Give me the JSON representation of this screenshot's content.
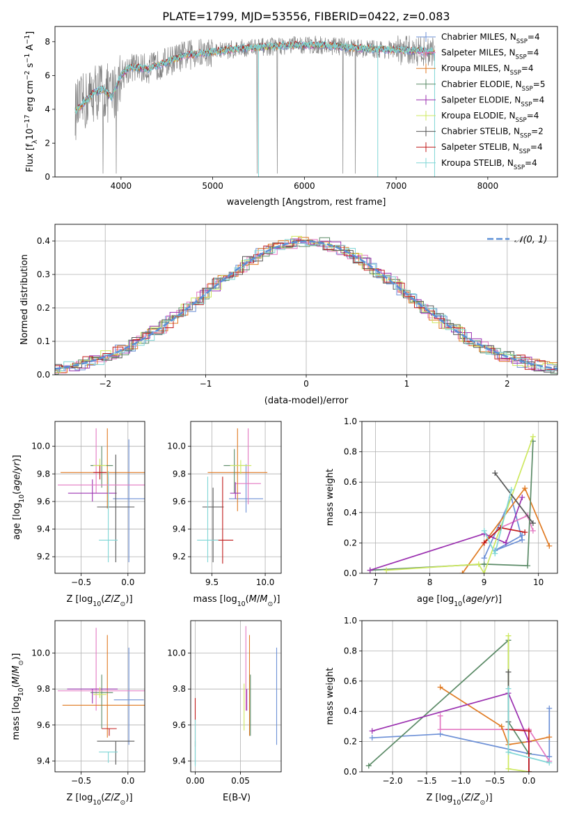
{
  "figure": {
    "title": "PLATE=1799, MJD=53556, FIBERID=0422, z=0.083"
  },
  "colors": {
    "Chabrier MILES": "#6b8fd6",
    "Salpeter MILES": "#e377c2",
    "Kroupa MILES": "#e07a22",
    "Chabrier ELODIE": "#5a8a66",
    "Salpeter ELODIE": "#9b30b0",
    "Kroupa ELODIE": "#cde85e",
    "Chabrier STELIB": "#555555",
    "Salpeter STELIB": "#c01818",
    "Kroupa STELIB": "#7fd6d6",
    "data": "#808080",
    "gauss": "#5b8fd6"
  },
  "chart_data": [
    {
      "id": "spectrum",
      "type": "line",
      "title": "PLATE=1799, MJD=53556, FIBERID=0422, z=0.083",
      "xlabel": "wavelength [Angstrom, rest frame]",
      "ylabel_parts": [
        "Flux [f",
        "λ",
        "10",
        "−17",
        " erg cm",
        "−2",
        " s",
        "−1",
        " A",
        "−1",
        "]"
      ],
      "xlim": [
        3280,
        8760
      ],
      "ylim": [
        0,
        8.9
      ],
      "xticks": [
        4000,
        5000,
        6000,
        7000,
        8000
      ],
      "yticks": [
        0,
        2,
        4,
        6,
        8
      ],
      "continuum": {
        "x": [
          3500,
          3600,
          3700,
          3800,
          3900,
          4000,
          4100,
          4300,
          4500,
          4700,
          5000,
          5300,
          5600,
          5900,
          6200,
          6500,
          6800,
          7100,
          7400
        ],
        "y": [
          3.9,
          4.4,
          5.0,
          5.2,
          4.7,
          6.0,
          6.5,
          6.4,
          6.8,
          7.2,
          7.4,
          7.6,
          7.7,
          7.8,
          7.8,
          7.65,
          7.55,
          7.5,
          7.4
        ]
      },
      "legend": [
        {
          "name": "Chabrier MILES",
          "nssp": "4"
        },
        {
          "name": "Salpeter MILES",
          "nssp": "4"
        },
        {
          "name": "Kroupa MILES",
          "nssp": "4"
        },
        {
          "name": "Chabrier ELODIE",
          "nssp": "5"
        },
        {
          "name": "Salpeter ELODIE",
          "nssp": "4"
        },
        {
          "name": "Kroupa ELODIE",
          "nssp": "4"
        },
        {
          "name": "Chabrier STELIB",
          "nssp": "2"
        },
        {
          "name": "Salpeter STELIB",
          "nssp": "4"
        },
        {
          "name": "Kroupa STELIB",
          "nssp": "4"
        }
      ],
      "legend_sub": "SSP",
      "legend_placement": "right"
    },
    {
      "id": "residuals",
      "type": "histogram",
      "xlabel": "(data-model)/error",
      "ylabel": "Normed distribution",
      "xlim": [
        -2.5,
        2.5
      ],
      "ylim": [
        0,
        0.45
      ],
      "xticks": [
        -2,
        -1,
        0,
        1,
        2
      ],
      "yticks": [
        0,
        0.1,
        0.2,
        0.3,
        0.4
      ],
      "legend": "𝒩(0, 1)",
      "legend_placement": "top-right",
      "grid": true
    },
    {
      "id": "age-vs-Z",
      "type": "errorbar",
      "xlabel": "Z [log10(Z/Z⊙)]",
      "ylabel": "age  [log10(age/yr)]",
      "xlim": [
        -0.78,
        0.18
      ],
      "ylim": [
        9.08,
        10.18
      ],
      "xticks": [
        -0.5,
        0.0
      ],
      "yticks": [
        9.2,
        9.4,
        9.6,
        9.8,
        10.0
      ],
      "points": [
        {
          "model": "Chabrier MILES",
          "x": 0.01,
          "xerr": 0.17,
          "y": 9.62,
          "yerr": [
            0.46,
            0.43
          ]
        },
        {
          "model": "Salpeter MILES",
          "x": -0.34,
          "xerr": 0.06,
          "y": 9.86,
          "yerr": [
            0.2,
            0.27
          ]
        },
        {
          "model": "Kroupa MILES",
          "x": -0.22,
          "xerr": 0.5,
          "y": 9.81,
          "yerr": [
            0.26,
            0.32
          ]
        },
        {
          "model": "Chabrier ELODIE",
          "x": -0.28,
          "xerr": 0.12,
          "y": 9.86,
          "yerr": [
            0.16,
            0.14
          ]
        },
        {
          "model": "Salpeter ELODIE",
          "x": -0.38,
          "xerr": 0.26,
          "y": 9.66,
          "yerr": [
            0.06,
            0.1
          ]
        },
        {
          "model": "Kroupa ELODIE",
          "x": -0.3,
          "xerr": 0.07,
          "y": 9.86,
          "yerr": [
            0.05,
            0.05
          ]
        },
        {
          "model": "Chabrier STELIB",
          "x": -0.13,
          "xerr": 0.2,
          "y": 9.56,
          "yerr": [
            0.4,
            0.38
          ]
        },
        {
          "model": "Salpeter STELIB",
          "x": -0.3,
          "xerr": 0.07,
          "y": 9.81,
          "yerr": [
            0.05,
            0.05
          ]
        },
        {
          "model": "Salpeter MILES",
          "x": -0.21,
          "xerr": 0.54,
          "y": 9.72,
          "yerr": [
            0.06,
            0.06
          ]
        },
        {
          "model": "Kroupa STELIB",
          "x": -0.21,
          "xerr": 0.1,
          "y": 9.32,
          "yerr": [
            0.16,
            0.5
          ]
        }
      ]
    },
    {
      "id": "age-vs-mass",
      "type": "errorbar",
      "xlabel": "mass [log10(M/M⊙)]",
      "ylabel": "",
      "xlim": [
        9.3,
        10.15
      ],
      "ylim": [
        9.08,
        10.18
      ],
      "xticks": [
        9.5,
        10.0
      ],
      "yticks": [
        9.2,
        9.4,
        9.6,
        9.8,
        10.0
      ],
      "points": [
        {
          "model": "Chabrier MILES",
          "x": 9.82,
          "xerr": 0.16,
          "y": 9.62,
          "yerr": [
            0.1,
            0.25
          ]
        },
        {
          "model": "Salpeter MILES",
          "x": 9.84,
          "xerr": 0.12,
          "y": 9.73,
          "yerr": [
            0.15,
            0.4
          ]
        },
        {
          "model": "Kroupa MILES",
          "x": 9.74,
          "xerr": 0.28,
          "y": 9.81,
          "yerr": [
            0.28,
            0.32
          ]
        },
        {
          "model": "Chabrier ELODIE",
          "x": 9.71,
          "xerr": 0.1,
          "y": 9.86,
          "yerr": [
            0.2,
            0.12
          ]
        },
        {
          "model": "Salpeter ELODIE",
          "x": 9.72,
          "xerr": 0.05,
          "y": 9.66,
          "yerr": [
            0.04,
            0.08
          ]
        },
        {
          "model": "Kroupa ELODIE",
          "x": 9.77,
          "xerr": 0.1,
          "y": 9.86,
          "yerr": [
            0.06,
            0.04
          ]
        },
        {
          "model": "Chabrier STELIB",
          "x": 9.51,
          "xerr": 0.1,
          "y": 9.56,
          "yerr": [
            0.4,
            0.14
          ]
        },
        {
          "model": "Salpeter STELIB",
          "x": 9.6,
          "xerr": 0.1,
          "y": 9.32,
          "yerr": [
            0.17,
            0.46
          ]
        },
        {
          "model": "Kroupa STELIB",
          "x": 9.46,
          "xerr": 0.1,
          "y": 9.32,
          "yerr": [
            0.16,
            0.46
          ]
        }
      ]
    },
    {
      "id": "weight-vs-age",
      "type": "line",
      "xlabel": "age  [log10(age/yr)]",
      "ylabel": "mass weight",
      "xlim": [
        6.75,
        10.35
      ],
      "ylim": [
        0,
        1
      ],
      "xticks": [
        7,
        8,
        9,
        10
      ],
      "yticks": [
        0,
        0.2,
        0.4,
        0.6,
        0.8,
        1.0
      ],
      "grid": true,
      "series": [
        {
          "model": "Chabrier MILES",
          "x": [
            9.0,
            9.5,
            9.7,
            9.2,
            9.7
          ],
          "y": [
            0.1,
            0.5,
            0.22,
            0.15,
            0.25
          ]
        },
        {
          "model": "Salpeter MILES",
          "x": [
            9.0,
            9.3,
            9.8,
            9.9
          ],
          "y": [
            0.2,
            0.3,
            0.38,
            0.28
          ]
        },
        {
          "model": "Kroupa MILES",
          "x": [
            8.6,
            9.0,
            9.75,
            10.2
          ],
          "y": [
            0.0,
            0.2,
            0.56,
            0.18
          ]
        },
        {
          "model": "Chabrier ELODIE",
          "x": [
            6.9,
            9.0,
            9.8,
            9.9
          ],
          "y": [
            0.02,
            0.06,
            0.05,
            0.87
          ]
        },
        {
          "model": "Salpeter ELODIE",
          "x": [
            6.9,
            9.0,
            9.4,
            9.7
          ],
          "y": [
            0.02,
            0.26,
            0.2,
            0.5
          ]
        },
        {
          "model": "Kroupa ELODIE",
          "x": [
            7.2,
            8.9,
            9.0,
            9.9
          ],
          "y": [
            0.02,
            0.06,
            0.0,
            0.9
          ]
        },
        {
          "model": "Chabrier STELIB",
          "x": [
            9.2,
            9.9
          ],
          "y": [
            0.66,
            0.33
          ]
        },
        {
          "model": "Salpeter STELIB",
          "x": [
            9.0,
            9.3,
            9.75
          ],
          "y": [
            0.2,
            0.3,
            0.27
          ]
        },
        {
          "model": "Kroupa STELIB",
          "x": [
            9.0,
            9.2,
            9.5
          ],
          "y": [
            0.28,
            0.13,
            0.55
          ]
        }
      ]
    },
    {
      "id": "mass-vs-Z",
      "type": "errorbar",
      "xlabel": "Z [log10(Z/Z⊙)]",
      "ylabel": "mass [log10(M/M⊙)]",
      "xlim": [
        -0.78,
        0.18
      ],
      "ylim": [
        9.34,
        10.18
      ],
      "xticks": [
        -0.5,
        0.0
      ],
      "yticks": [
        9.4,
        9.6,
        9.8,
        10.0
      ],
      "points": [
        {
          "model": "Chabrier MILES",
          "x": 0.01,
          "xerr": 0.16,
          "y": 9.74,
          "yerr": [
            0.25,
            0.29
          ]
        },
        {
          "model": "Salpeter MILES",
          "x": -0.34,
          "xerr": 0.06,
          "y": 9.8,
          "yerr": [
            0.12,
            0.34
          ]
        },
        {
          "model": "Kroupa MILES",
          "x": -0.22,
          "xerr": 0.48,
          "y": 9.71,
          "yerr": [
            0.18,
            0.39
          ]
        },
        {
          "model": "Chabrier ELODIE",
          "x": -0.28,
          "xerr": 0.12,
          "y": 9.78,
          "yerr": [
            0.2,
            0.1
          ]
        },
        {
          "model": "Salpeter ELODIE",
          "x": -0.38,
          "xerr": 0.27,
          "y": 9.8,
          "yerr": [
            0.08,
            0.0
          ]
        },
        {
          "model": "Kroupa ELODIE",
          "x": -0.3,
          "xerr": 0.07,
          "y": 9.77,
          "yerr": [
            0.02,
            0.04
          ]
        },
        {
          "model": "Chabrier STELIB",
          "x": -0.13,
          "xerr": 0.2,
          "y": 9.51,
          "yerr": [
            0.13,
            0.0
          ]
        },
        {
          "model": "Salpeter STELIB",
          "x": -0.2,
          "xerr": 0.08,
          "y": 9.58,
          "yerr": [
            0.04,
            0.0
          ]
        },
        {
          "model": "Salpeter MILES",
          "x": -0.21,
          "xerr": 0.54,
          "y": 9.79,
          "yerr": [
            0.0,
            0.0
          ]
        },
        {
          "model": "Kroupa STELIB",
          "x": -0.21,
          "xerr": 0.1,
          "y": 9.45,
          "yerr": [
            0.06,
            0.0
          ]
        }
      ]
    },
    {
      "id": "mass-vs-EBV",
      "type": "errorbar",
      "xlabel": "E(B-V)",
      "ylabel": "",
      "xlim": [
        -0.005,
        0.095
      ],
      "ylim": [
        9.34,
        10.18
      ],
      "xticks": [
        0.0,
        0.05
      ],
      "yticks": [
        9.4,
        9.6,
        9.8,
        10.0
      ],
      "points": [
        {
          "model": "Chabrier MILES",
          "x": 0.09,
          "y": 9.76,
          "yerr": [
            0.27,
            0.27
          ]
        },
        {
          "model": "Salpeter MILES",
          "x": 0.056,
          "y": 9.8,
          "yerr": [
            0.12,
            0.35
          ]
        },
        {
          "model": "Kroupa MILES",
          "x": 0.06,
          "y": 9.72,
          "yerr": [
            0.18,
            0.38
          ]
        },
        {
          "model": "Chabrier ELODIE",
          "x": 0.061,
          "y": 9.78,
          "yerr": [
            0.24,
            0.1
          ]
        },
        {
          "model": "Salpeter ELODIE",
          "x": 0.057,
          "y": 9.8,
          "yerr": [
            0.12,
            0.0
          ]
        },
        {
          "model": "Kroupa ELODIE",
          "x": 0.054,
          "y": 9.71,
          "yerr": [
            0.14,
            0.12
          ]
        },
        {
          "model": "Salpeter STELIB",
          "x": 0.0,
          "y": 9.58,
          "yerr": [
            0.1,
            0.17
          ]
        },
        {
          "model": "Chabrier STELIB",
          "x": 0.0,
          "y": 9.51,
          "yerr": [
            0.13,
            0.0
          ]
        },
        {
          "model": "Kroupa STELIB",
          "x": 0.0,
          "y": 9.45,
          "yerr": [
            0.08,
            0.18
          ]
        }
      ]
    },
    {
      "id": "weight-vs-Z",
      "type": "line",
      "xlabel": "Z [log10(Z/Z⊙)]",
      "ylabel": "mass weight",
      "xlim": [
        -2.45,
        0.42
      ],
      "ylim": [
        0,
        1
      ],
      "xticks": [
        -2.0,
        -1.5,
        -1.0,
        -0.5,
        0.0
      ],
      "yticks": [
        0,
        0.2,
        0.4,
        0.6,
        0.8,
        1.0
      ],
      "grid": true,
      "series": [
        {
          "model": "Chabrier MILES",
          "x": [
            -2.3,
            -1.3,
            0.0,
            0.3,
            0.3
          ],
          "y": [
            0.225,
            0.25,
            0.12,
            0.1,
            0.42
          ]
        },
        {
          "model": "Salpeter MILES",
          "x": [
            -1.3,
            -1.3,
            0.0,
            0.3
          ],
          "y": [
            0.37,
            0.28,
            0.28,
            0.07
          ]
        },
        {
          "model": "Kroupa MILES",
          "x": [
            -1.3,
            -0.4,
            -0.3,
            0.0,
            0.3
          ],
          "y": [
            0.56,
            0.3,
            0.18,
            0.2,
            0.23
          ]
        },
        {
          "model": "Chabrier ELODIE",
          "x": [
            -2.35,
            -0.3,
            -0.3,
            0.0,
            0.0
          ],
          "y": [
            0.04,
            0.87,
            0.33,
            0.12,
            0.0
          ]
        },
        {
          "model": "Salpeter ELODIE",
          "x": [
            -2.3,
            -0.3,
            0.0,
            0.0
          ],
          "y": [
            0.27,
            0.52,
            0.2,
            0.0
          ]
        },
        {
          "model": "Kroupa ELODIE",
          "x": [
            -0.3,
            -0.3,
            0.0
          ],
          "y": [
            0.9,
            0.02,
            0.0
          ]
        },
        {
          "model": "Chabrier STELIB",
          "x": [
            -0.3,
            -0.3
          ],
          "y": [
            0.66,
            0.33
          ]
        },
        {
          "model": "Salpeter STELIB",
          "x": [
            -0.3,
            0.0,
            0.0
          ],
          "y": [
            0.28,
            0.27,
            0.0
          ]
        },
        {
          "model": "Kroupa STELIB",
          "x": [
            -0.3,
            -0.3,
            0.3
          ],
          "y": [
            0.55,
            0.13,
            0.06
          ]
        }
      ]
    }
  ]
}
